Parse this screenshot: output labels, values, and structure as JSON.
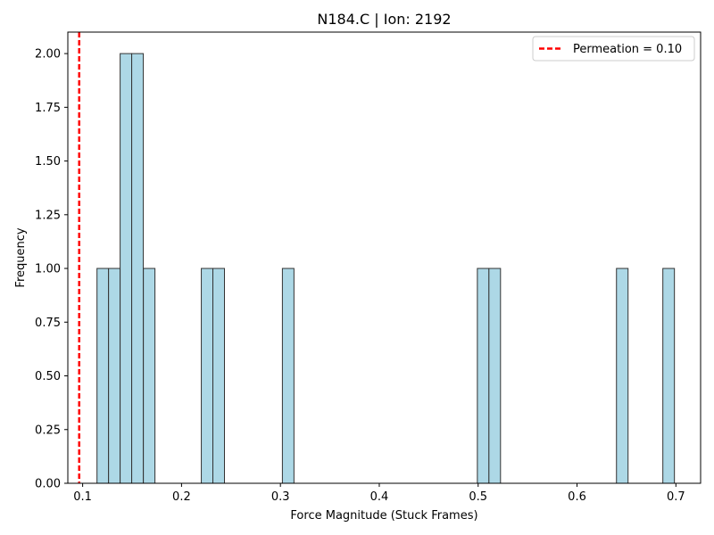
{
  "chart_data": {
    "type": "bar",
    "title": "N184.C | Ion: 2192",
    "xlabel": "Force Magnitude (Stuck Frames)",
    "ylabel": "Frequency",
    "xlim": [
      0.085,
      0.725
    ],
    "ylim": [
      0,
      2.1
    ],
    "xticks": [
      "0.1",
      "0.2",
      "0.3",
      "0.4",
      "0.5",
      "0.6",
      "0.7"
    ],
    "yticks": [
      "0.00",
      "0.25",
      "0.50",
      "0.75",
      "1.00",
      "1.25",
      "1.50",
      "1.75",
      "2.00"
    ],
    "bin_width": 0.01172,
    "bins": [
      {
        "x0": 0.1145,
        "value": 1
      },
      {
        "x0": 0.1262,
        "value": 1
      },
      {
        "x0": 0.1379,
        "value": 2
      },
      {
        "x0": 0.1496,
        "value": 2
      },
      {
        "x0": 0.1614,
        "value": 1
      },
      {
        "x0": 0.22,
        "value": 1
      },
      {
        "x0": 0.2317,
        "value": 1
      },
      {
        "x0": 0.302,
        "value": 1
      },
      {
        "x0": 0.4992,
        "value": 1
      },
      {
        "x0": 0.5109,
        "value": 1
      },
      {
        "x0": 0.6399,
        "value": 1
      },
      {
        "x0": 0.6868,
        "value": 1
      }
    ],
    "bar_fill": "#add8e6",
    "bar_edge": "#333333",
    "threshold": {
      "label": "Permeation = 0.10",
      "x": 0.0965,
      "color": "#ff0000",
      "style": "dashed"
    },
    "legend": {
      "position": "upper-right"
    },
    "grid": false
  }
}
